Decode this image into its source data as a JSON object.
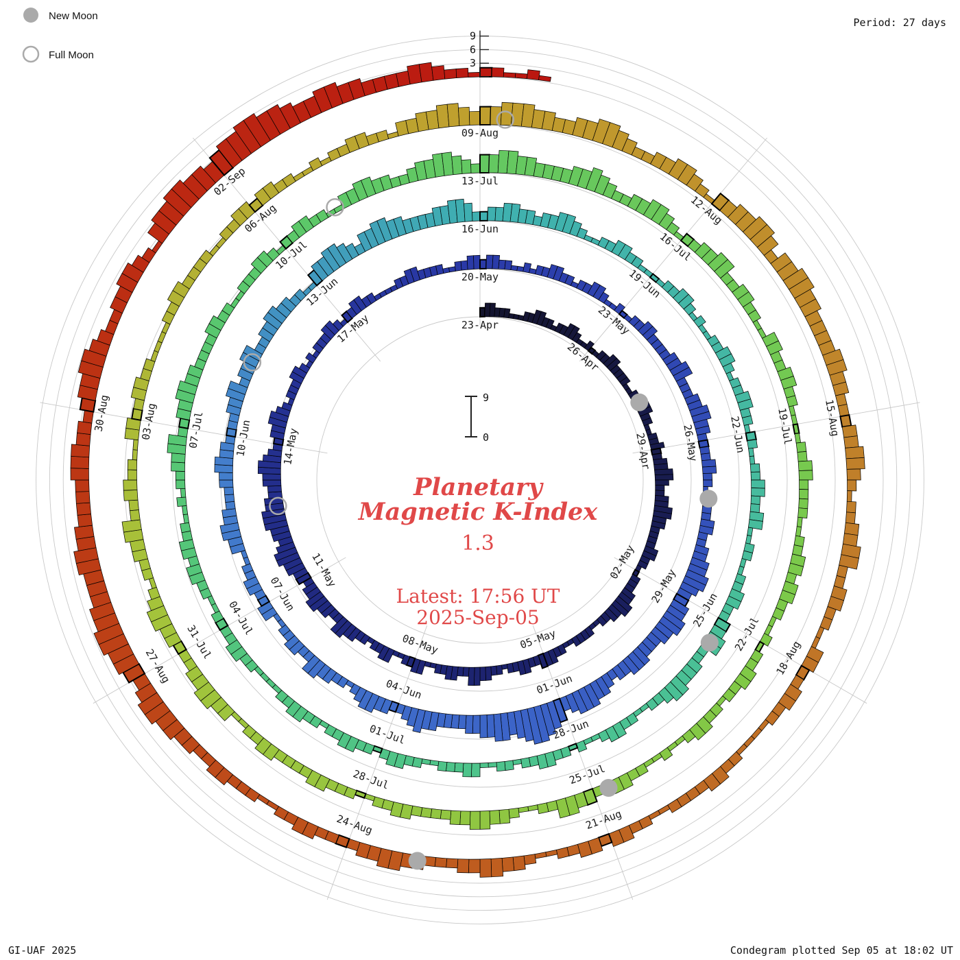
{
  "meta": {
    "period_label": "Period: 27 days",
    "credit": "GI-UAF 2025",
    "plotted": "Condegram plotted Sep 05 at 18:02 UT"
  },
  "legend": {
    "new_moon": "New Moon",
    "full_moon": "Full Moon"
  },
  "center": {
    "title_line1": "Planetary",
    "title_line2": "Magnetic K-Index",
    "current_value": "1.3",
    "latest_line1": "Latest: 17:56 UT",
    "latest_line2": "2025-Sep-05"
  },
  "colors": {
    "accent_red": "#e04848",
    "moon_gray": "#aaaaaa",
    "grid": "#c8c8c8",
    "bar_outline": "#000000"
  },
  "chart_data": {
    "type": "bar",
    "subtype": "condegram-polar-spiral",
    "title": "Planetary Magnetic K-Index",
    "quantity": "3-hour planetary K-index (Kp), one bar per 3-hour UT interval, spiraling clockwise from top",
    "start_date": "2025-Apr-23",
    "end_datetime": "2025-Sep-05 17:56 UT",
    "current_value": 1.3,
    "days_per_revolution": 27,
    "values_per_day": 8,
    "radial_scale": {
      "min": 0,
      "max": 9,
      "ticks": [
        3,
        6,
        9
      ]
    },
    "date_labels": [
      "23-Apr",
      "26-Apr",
      "29-Apr",
      "02-May",
      "05-May",
      "08-May",
      "11-May",
      "14-May",
      "17-May",
      "20-May",
      "23-May",
      "26-May",
      "29-May",
      "01-Jun",
      "04-Jun",
      "07-Jun",
      "10-Jun",
      "13-Jun",
      "16-Jun",
      "19-Jun",
      "22-Jun",
      "25-Jun",
      "28-Jun",
      "01-Jul",
      "04-Jul",
      "07-Jul",
      "10-Jul",
      "13-Jul",
      "16-Jul",
      "19-Jul",
      "22-Jul",
      "25-Jul",
      "28-Jul",
      "31-Jul",
      "03-Aug",
      "06-Aug",
      "09-Aug",
      "12-Aug",
      "15-Aug",
      "18-Aug",
      "21-Aug",
      "24-Aug",
      "27-Aug",
      "30-Aug",
      "02-Sep"
    ],
    "kp_3hr_values": "23322211 12233221 22332112 11223322 22112233 32211223 22334432 23344332 22233221 12223344 33221122 22112233 32233221 22334422 33221133 22113322 12233442 23344332 33445543 44555443 34455432 23344321 22233212 12223321 22332211 11223322 22112233 23322112 12233221 22332112 11223322 22334422 23344332 22233221 12223322 33445543 34455443 33444332 34455543 56788765 66554433 33445432 23344321 22334422 33221133 22332211 33443322 23344332 22233442 33442233 44332211 34455432 44554433 33445542 23344332 33443211 22332211 11223321 21122332 12233221 22112233 22331122 11223322 33442233 34432211 22332112 12233221 22113322 21122332 12233221 22332211 11223322 22112233 23322112 12233442 23344332 22233221 12223321 22332211 33443322 34455432 44554433 33445432 23344321 22334422 33221133 22332211 11223322 22112233 23322112 12233221 22332112 11223322 33442211 23344332 22233221 12223322 22332211 33443322 23344321 22334422 33221133 22332211 11223322 22112233 23322112 12233221 33445543 44555443 34455432 23344321 33445542 44554433 33443322 23344321 22334422 33221133 22332211 11223322 22112233 23322112 33443322 23344332 22233221 12223322 33445543 45566554 44554433 33444332 34455432 23344321 45566554 56677665 44554433 33443221 221121",
    "moons": {
      "new_dates": [
        "27-Apr",
        "27-May",
        "25-Jun",
        "24-Jul",
        "23-Aug"
      ],
      "new_t": [
        4.8,
        34.1,
        63.4,
        92.8,
        122.2
      ],
      "full_dates": [
        "12-May",
        "11-Jun",
        "10-Jul",
        "09-Aug"
      ],
      "full_t": [
        19.7,
        49.3,
        78.9,
        108.3
      ]
    },
    "color_stops": [
      [
        0,
        "#14142e"
      ],
      [
        14,
        "#1d2472"
      ],
      [
        27,
        "#2a3aa8"
      ],
      [
        40,
        "#3c64c8"
      ],
      [
        48,
        "#4480cc"
      ],
      [
        54,
        "#3fb0b0"
      ],
      [
        66,
        "#4cc390"
      ],
      [
        78,
        "#5bc86a"
      ],
      [
        90,
        "#7ec948"
      ],
      [
        100,
        "#a6c33a"
      ],
      [
        108,
        "#c09f2e"
      ],
      [
        115,
        "#c07e2a"
      ],
      [
        122,
        "#bf5a1e"
      ],
      [
        128,
        "#bc3814"
      ],
      [
        136,
        "#bb1510"
      ]
    ]
  }
}
